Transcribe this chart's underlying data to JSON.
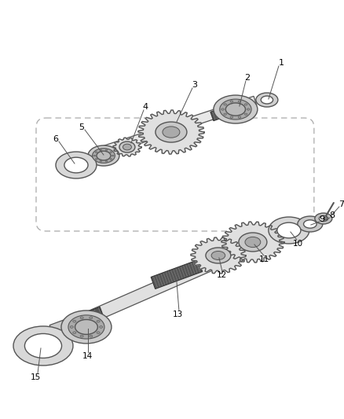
{
  "background_color": "#ffffff",
  "line_color": "#555555",
  "label_color": "#000000",
  "shaft_color": "#cccccc",
  "shaft_edge": "#666666",
  "gear_fill": "#e0e0e0",
  "gear_edge": "#555555",
  "ring_fill": "#d8d8d8",
  "bearing_fill": "#cccccc",
  "spline_color": "#444444"
}
